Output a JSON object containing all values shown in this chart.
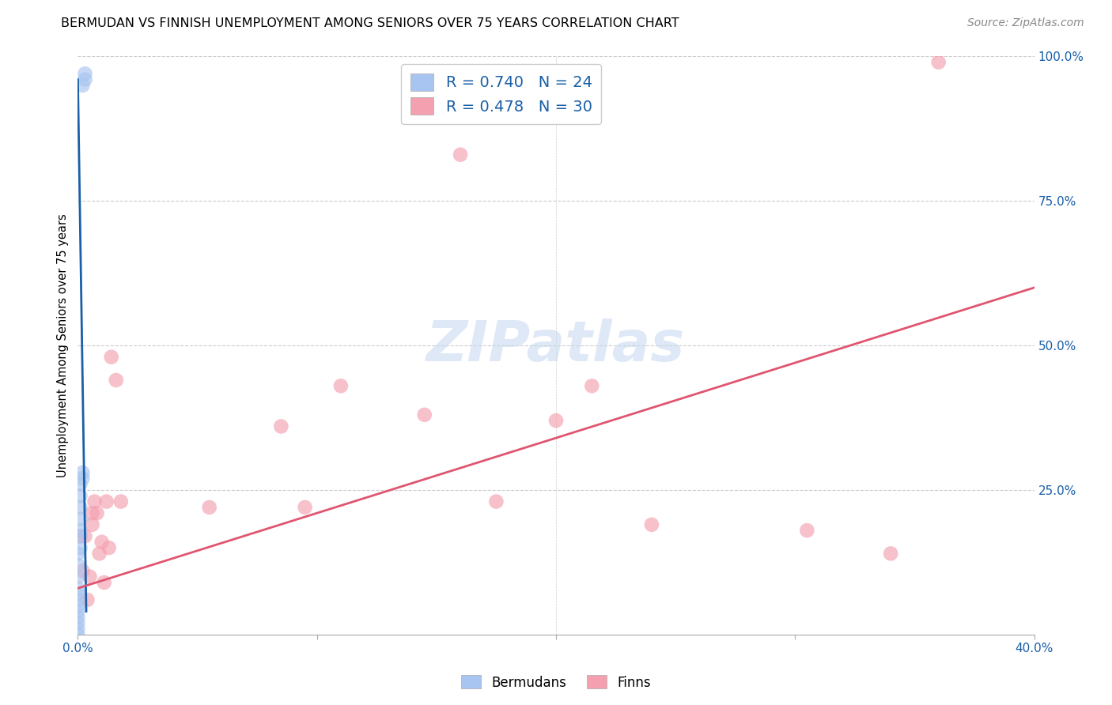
{
  "title": "BERMUDAN VS FINNISH UNEMPLOYMENT AMONG SENIORS OVER 75 YEARS CORRELATION CHART",
  "source": "Source: ZipAtlas.com",
  "ylabel": "Unemployment Among Seniors over 75 years",
  "watermark": "ZIPatlas",
  "xlim": [
    0.0,
    0.4
  ],
  "ylim": [
    0.0,
    1.0
  ],
  "bermuda_R": 0.74,
  "bermuda_N": 24,
  "finn_R": 0.478,
  "finn_N": 30,
  "bermuda_color": "#a8c4f0",
  "bermuda_line_color": "#1a5fa8",
  "finn_color": "#f4a0b0",
  "finn_line_color": "#e05570",
  "bermuda_points_x": [
    0.0,
    0.0,
    0.0,
    0.0,
    0.0,
    0.0,
    0.0,
    0.0,
    0.0,
    0.0,
    0.0,
    0.0,
    0.001,
    0.001,
    0.001,
    0.001,
    0.001,
    0.001,
    0.001,
    0.002,
    0.002,
    0.002,
    0.003,
    0.003
  ],
  "bermuda_points_y": [
    0.0,
    0.01,
    0.02,
    0.03,
    0.04,
    0.05,
    0.06,
    0.07,
    0.08,
    0.1,
    0.12,
    0.14,
    0.15,
    0.17,
    0.18,
    0.2,
    0.22,
    0.24,
    0.26,
    0.27,
    0.28,
    0.95,
    0.96,
    0.97
  ],
  "finn_points_x": [
    0.001,
    0.002,
    0.003,
    0.004,
    0.005,
    0.006,
    0.006,
    0.007,
    0.008,
    0.009,
    0.01,
    0.011,
    0.012,
    0.013,
    0.014,
    0.016,
    0.018,
    0.055,
    0.085,
    0.095,
    0.11,
    0.145,
    0.16,
    0.175,
    0.2,
    0.215,
    0.24,
    0.305,
    0.34,
    0.36
  ],
  "finn_points_y": [
    0.17,
    0.11,
    0.17,
    0.06,
    0.1,
    0.21,
    0.19,
    0.23,
    0.21,
    0.14,
    0.16,
    0.09,
    0.23,
    0.15,
    0.48,
    0.44,
    0.23,
    0.22,
    0.36,
    0.22,
    0.43,
    0.38,
    0.83,
    0.23,
    0.37,
    0.43,
    0.19,
    0.18,
    0.14,
    0.99
  ],
  "bermuda_trendline_x": [
    0.0,
    0.0035
  ],
  "bermuda_trendline_y": [
    0.96,
    0.04
  ],
  "finn_trendline_x": [
    0.0,
    0.4
  ],
  "finn_trendline_y": [
    0.08,
    0.6
  ],
  "grid_color": "#cccccc",
  "grid_style": "--",
  "background_color": "#ffffff",
  "title_fontsize": 11.5,
  "source_fontsize": 10,
  "label_fontsize": 10.5,
  "tick_fontsize": 11,
  "legend_fontsize": 14,
  "watermark_fontsize": 52,
  "watermark_color": "#c8daf0",
  "watermark_alpha": 0.6,
  "scatter_size": 180,
  "scatter_alpha": 0.65
}
